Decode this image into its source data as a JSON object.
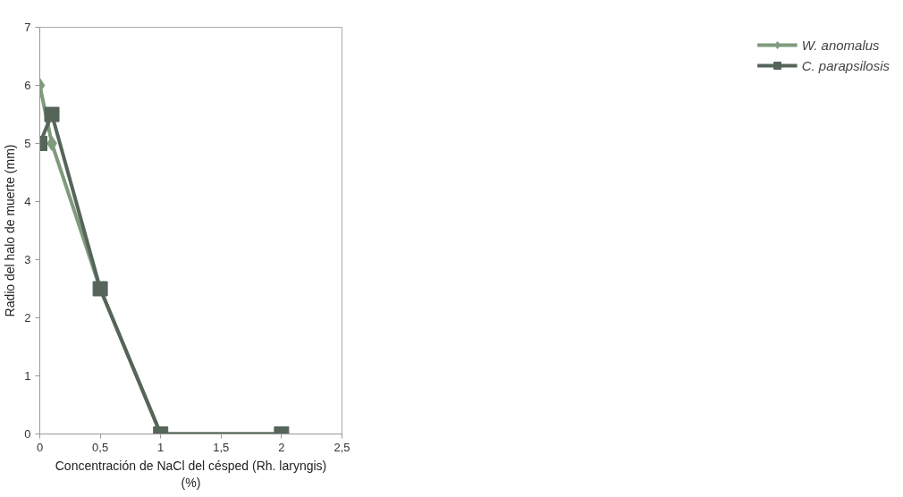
{
  "chart_data": {
    "type": "line",
    "xlabel": "Concentración de NaCl del césped (Rh. laryngis)\n(%)",
    "ylabel": "Radio del halo de muerte (mm)",
    "x": [
      0,
      0.1,
      0.5,
      1,
      2
    ],
    "series": [
      {
        "name": "W. anomalus",
        "color": "#7f9a7c",
        "values": [
          6,
          5,
          2.5,
          0,
          0
        ],
        "marker": "diamond"
      },
      {
        "name": "C. parapsilosis",
        "color": "#56655a",
        "values": [
          5,
          5.5,
          2.5,
          0,
          0
        ],
        "marker": "square"
      }
    ],
    "xlim": [
      0,
      2.5
    ],
    "xticks": [
      0,
      {
        "value": 0.5,
        "label": "0,5"
      },
      1,
      {
        "value": 1.5,
        "label": "1,5"
      },
      2,
      {
        "value": 2.5,
        "label": "2,5"
      }
    ],
    "ylim": [
      0,
      7
    ],
    "yticks": [
      0,
      1,
      2,
      3,
      4,
      5,
      6,
      7
    ],
    "grid": false,
    "legend": "right",
    "line_style": "solid"
  }
}
